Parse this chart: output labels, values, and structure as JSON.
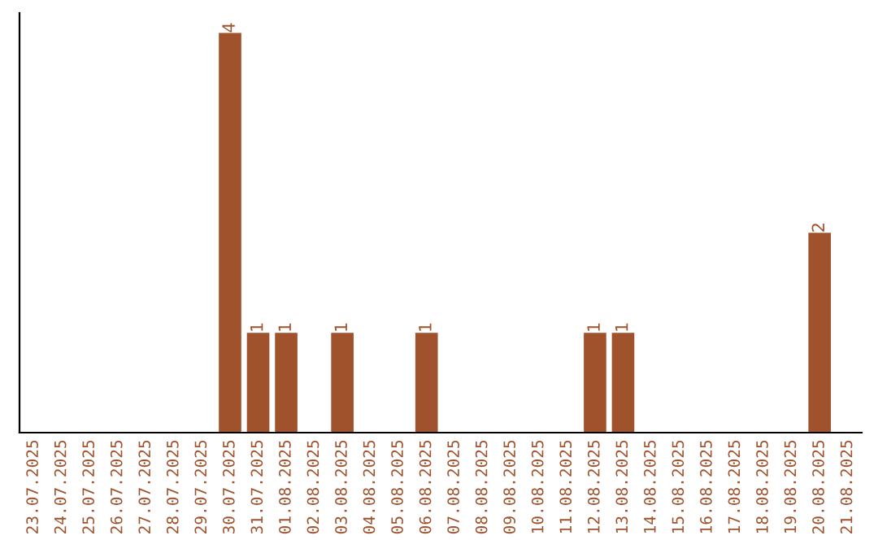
{
  "chart_data": {
    "type": "bar",
    "categories": [
      "23.07.2025",
      "24.07.2025",
      "25.07.2025",
      "26.07.2025",
      "27.07.2025",
      "28.07.2025",
      "29.07.2025",
      "30.07.2025",
      "31.07.2025",
      "01.08.2025",
      "02.08.2025",
      "03.08.2025",
      "04.08.2025",
      "05.08.2025",
      "06.08.2025",
      "07.08.2025",
      "08.08.2025",
      "09.08.2025",
      "10.08.2025",
      "11.08.2025",
      "12.08.2025",
      "13.08.2025",
      "14.08.2025",
      "15.08.2025",
      "16.08.2025",
      "17.08.2025",
      "18.08.2025",
      "19.08.2025",
      "20.08.2025",
      "21.08.2025"
    ],
    "values": [
      0,
      0,
      0,
      0,
      0,
      0,
      0,
      4,
      1,
      1,
      0,
      1,
      0,
      0,
      1,
      0,
      0,
      0,
      0,
      0,
      1,
      1,
      0,
      0,
      0,
      0,
      0,
      0,
      2,
      0
    ],
    "value_labels": [
      null,
      null,
      null,
      null,
      null,
      null,
      null,
      "4",
      "1",
      "1",
      null,
      "1",
      null,
      null,
      "1",
      null,
      null,
      null,
      null,
      null,
      "1",
      "1",
      null,
      null,
      null,
      null,
      null,
      null,
      "2",
      null
    ],
    "color": "#a0522d",
    "grid": false,
    "legend": false
  }
}
